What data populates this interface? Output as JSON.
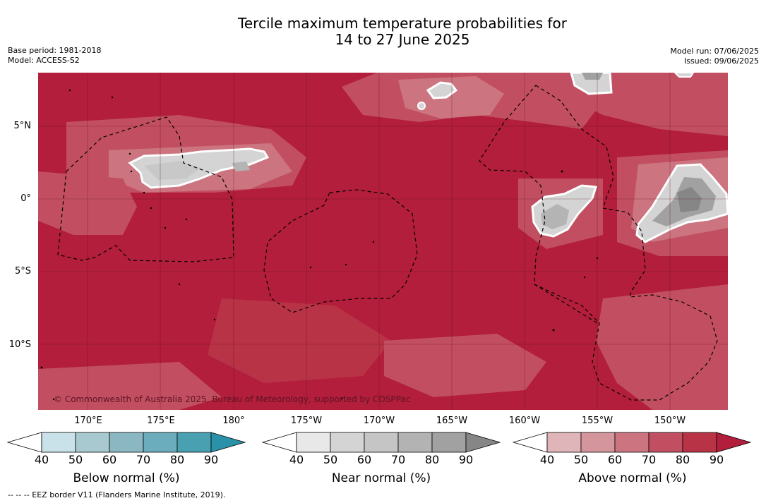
{
  "header": {
    "title_line1": "Tercile maximum temperature probabilities for",
    "title_line2": "14 to 27 June 2025",
    "base_period": "Base period: 1981-2018",
    "model": "Model: ACCESS-S2",
    "model_run": "Model run: 07/06/2025",
    "issued": "Issued: 09/06/2025"
  },
  "map": {
    "copyright": "© Commonwealth of Australia 2025, Bureau of Meteorology, supported by COSPPac",
    "lat_labels": [
      "5°N",
      "0°",
      "5°S",
      "10°S"
    ],
    "lon_labels": [
      "170°E",
      "175°E",
      "180°",
      "175°W",
      "170°W",
      "165°W",
      "160°W",
      "155°W",
      "150°W"
    ],
    "base_color": "#b21e3b",
    "colors": {
      "above_50": "#d4959c",
      "above_60": "#cc7580",
      "above_70": "#c24f61",
      "above_80": "#b93346",
      "near_50": "#d4d4d4",
      "near_60": "#c8c8c8",
      "near_70": "#b4b4b4",
      "near_80": "#a1a1a1",
      "near_90": "#868686"
    }
  },
  "colorbars": [
    {
      "title": "Below normal (%)",
      "ticks": [
        "40",
        "50",
        "60",
        "70",
        "80",
        "90"
      ],
      "colors": [
        "#c9e1e8",
        "#a8c9cf",
        "#8bb7c2",
        "#6badbc",
        "#48a0b0",
        "#2a92a8"
      ]
    },
    {
      "title": "Near normal (%)",
      "ticks": [
        "40",
        "50",
        "60",
        "70",
        "80",
        "90"
      ],
      "colors": [
        "#e8e8e8",
        "#d4d4d4",
        "#c5c5c5",
        "#b3b3b3",
        "#a1a1a1",
        "#868686"
      ]
    },
    {
      "title": "Above normal (%)",
      "ticks": [
        "40",
        "50",
        "60",
        "70",
        "80",
        "90"
      ],
      "colors": [
        "#e0b5ba",
        "#d4959c",
        "#cc7580",
        "#c24f61",
        "#b93346",
        "#b21e3b"
      ]
    }
  ],
  "footer": {
    "eez_legend": "--  --  -- EEZ border V11 (Flanders Marine Institute, 2019)."
  }
}
